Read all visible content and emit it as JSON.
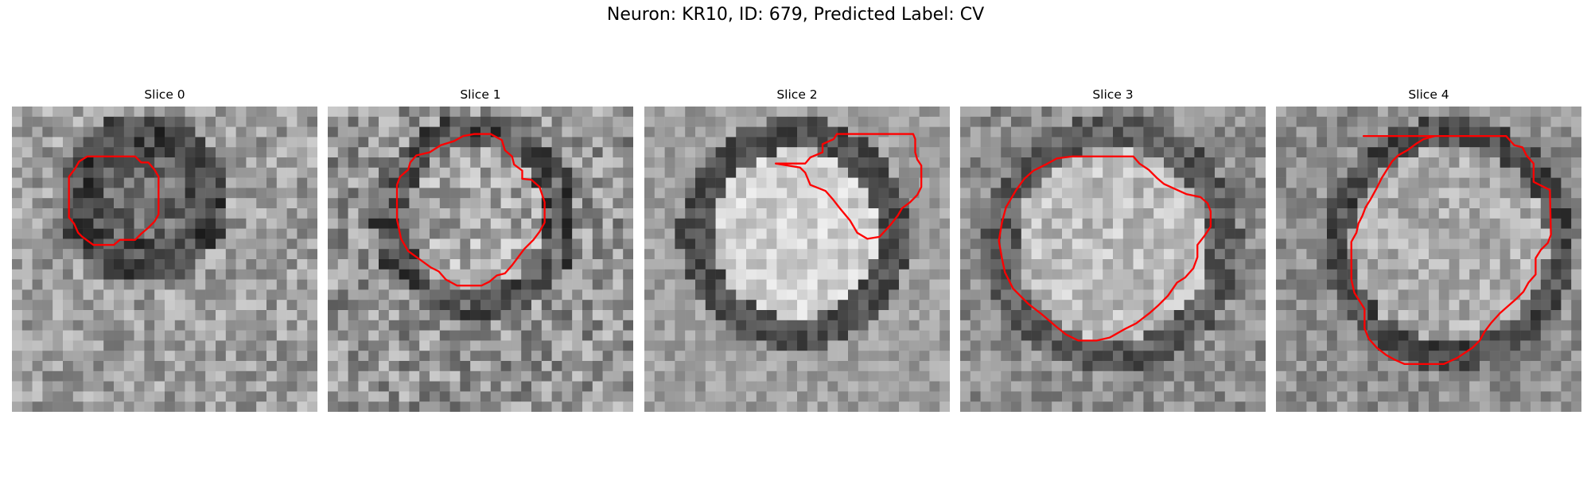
{
  "figure": {
    "title": "Neuron: KR10, ID: 679, Predicted Label: CV"
  },
  "slices": [
    {
      "title": "Slice 0"
    },
    {
      "title": "Slice 1"
    },
    {
      "title": "Slice 2"
    },
    {
      "title": "Slice 3"
    },
    {
      "title": "Slice 4"
    }
  ],
  "colors": {
    "contour": "#ff0000",
    "colormap": "grayscale"
  }
}
